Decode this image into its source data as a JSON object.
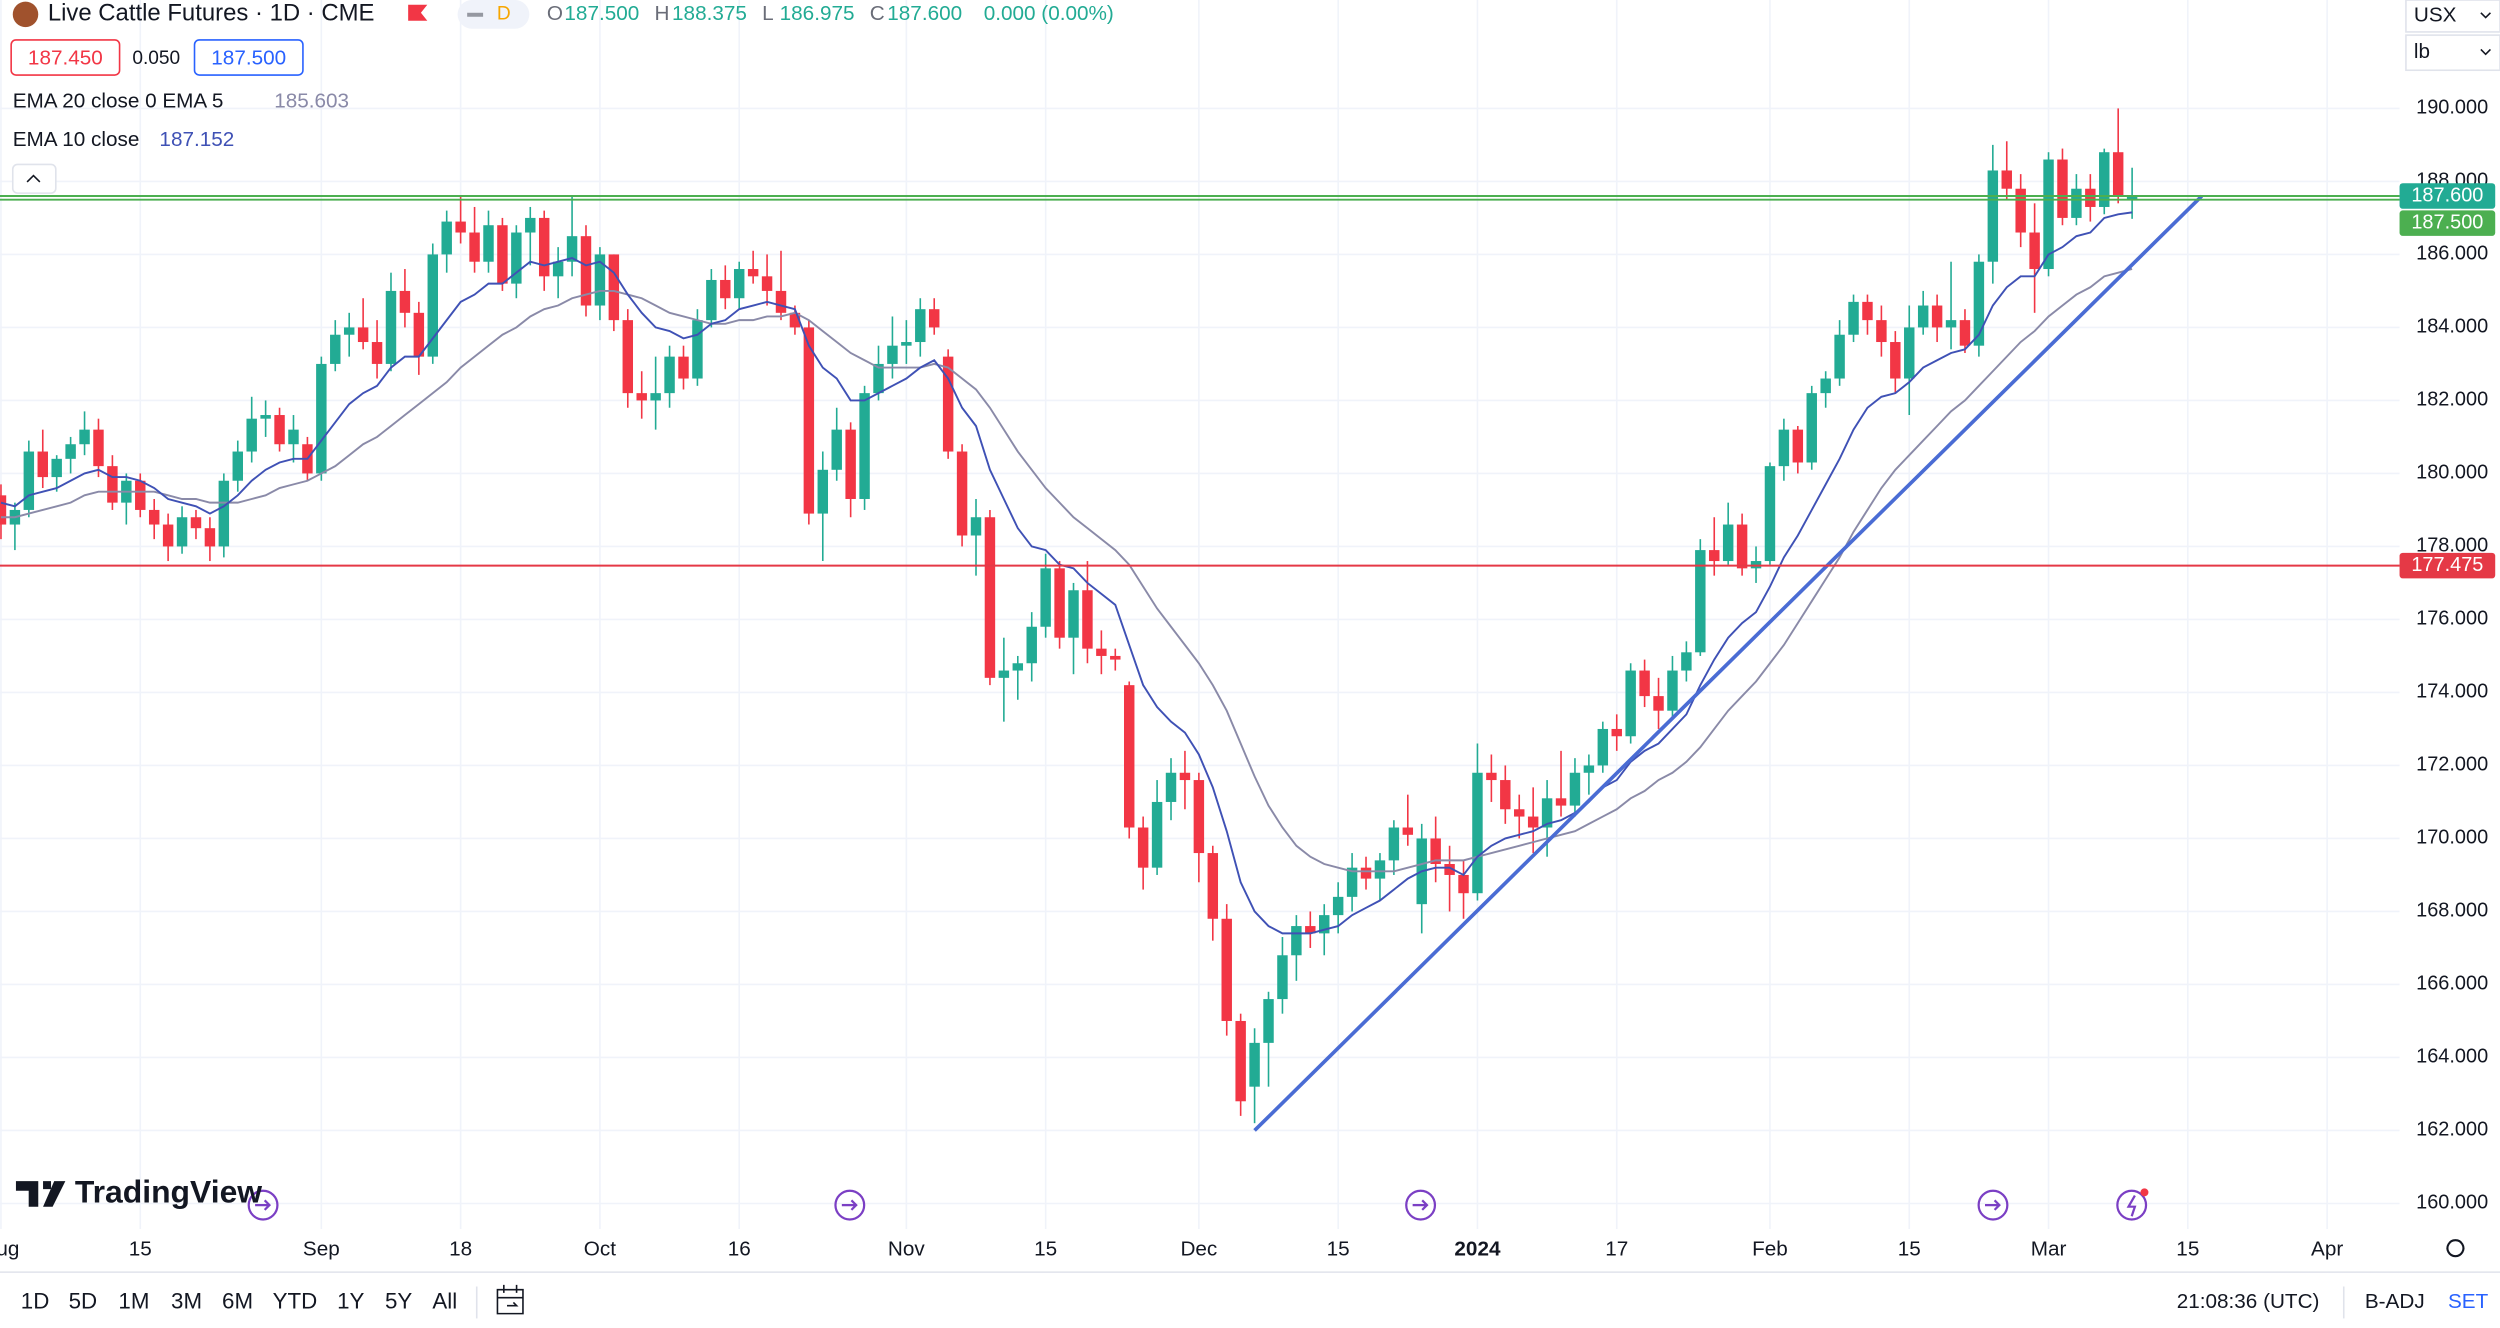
{
  "header": {
    "title": "Live Cattle Futures · 1D · CME",
    "interval_badge": "D",
    "ohlc": [
      {
        "key": "O",
        "value": "187.500"
      },
      {
        "key": "H",
        "value": "188.375"
      },
      {
        "key": "L",
        "value": "186.975"
      },
      {
        "key": "C",
        "value": "187.600"
      }
    ],
    "change": "0.000 (0.00%)"
  },
  "quote": {
    "bid": "187.450",
    "spread": "0.050",
    "ask": "187.500"
  },
  "units": {
    "currency": "USX",
    "unit": "lb"
  },
  "logo": "TradingView",
  "toolbar": {
    "ranges": [
      "1D",
      "5D",
      "1M",
      "3M",
      "6M",
      "YTD",
      "1Y",
      "5Y",
      "All"
    ],
    "time": "21:08:36 (UTC)",
    "adjust": "B-ADJ",
    "settlement": "SET"
  },
  "chart_data": {
    "type": "candlestick",
    "up_color": "#22ab94",
    "down_color": "#f23645",
    "grid": true,
    "categories": [
      "Aug",
      null,
      null,
      null,
      null,
      null,
      null,
      null,
      null,
      null,
      "15",
      null,
      null,
      null,
      null,
      null,
      null,
      null,
      null,
      null,
      null,
      null,
      null,
      "Sep",
      null,
      null,
      null,
      null,
      null,
      null,
      null,
      null,
      null,
      "18",
      null,
      null,
      null,
      null,
      null,
      null,
      null,
      null,
      null,
      "Oct",
      null,
      null,
      null,
      null,
      null,
      null,
      null,
      null,
      null,
      "16",
      null,
      null,
      null,
      null,
      null,
      null,
      null,
      null,
      null,
      null,
      null,
      "Nov",
      null,
      null,
      null,
      null,
      null,
      null,
      null,
      null,
      null,
      "15",
      null,
      null,
      null,
      null,
      null,
      null,
      null,
      null,
      null,
      null,
      "Dec",
      null,
      null,
      null,
      null,
      null,
      null,
      null,
      null,
      null,
      "15",
      null,
      null,
      null,
      null,
      null,
      null,
      null,
      null,
      null,
      "2024",
      null,
      null,
      null,
      null,
      null,
      null,
      null,
      null,
      null,
      "17",
      null,
      null,
      null,
      null,
      null,
      null,
      null,
      null,
      null,
      null,
      "Feb",
      null,
      null,
      null,
      null,
      null,
      null,
      null,
      null,
      null,
      "15",
      null,
      null,
      null,
      null,
      null,
      null,
      null,
      null,
      null,
      "Mar",
      null,
      null,
      null,
      null,
      null,
      null,
      null,
      null,
      null,
      "15",
      null,
      null,
      null,
      null,
      null,
      null,
      null,
      null,
      null,
      "Apr"
    ],
    "open": [
      179.4,
      178.6,
      179.0,
      180.6,
      179.9,
      180.4,
      180.8,
      181.2,
      180.2,
      179.2,
      179.8,
      179.0,
      178.6,
      178.0,
      178.8,
      178.5,
      178.0,
      179.8,
      180.6,
      181.5,
      181.6,
      180.8,
      180.8,
      180.0,
      183.0,
      183.8,
      184.0,
      183.6,
      183.0,
      185.0,
      184.4,
      183.2,
      186.0,
      186.9,
      186.6,
      185.8,
      186.8,
      185.2,
      186.6,
      187.0,
      185.4,
      185.8,
      186.5,
      184.6,
      186.0,
      184.2,
      182.2,
      182.0,
      182.2,
      183.2,
      182.6,
      184.2,
      185.3,
      184.8,
      185.6,
      185.4,
      185.0,
      184.4,
      184.0,
      178.9,
      180.1,
      181.2,
      179.3,
      182.2,
      183.0,
      183.5,
      183.6,
      184.5,
      183.2,
      180.6,
      178.3,
      178.8,
      174.4,
      174.6,
      174.8,
      175.8,
      177.4,
      175.5,
      176.8,
      175.2,
      175.0,
      174.2,
      170.3,
      169.2,
      171.0,
      171.8,
      171.6,
      169.6,
      167.8,
      165.0,
      163.2,
      164.4,
      165.6,
      166.8,
      167.6,
      167.4,
      167.9,
      168.4,
      169.2,
      168.9,
      169.4,
      170.3,
      168.2,
      170.0,
      169.3,
      169.0,
      168.5,
      171.8,
      171.6,
      170.8,
      170.6,
      170.3,
      171.1,
      170.9,
      171.8,
      172.0,
      173.0,
      172.8,
      174.6,
      173.9,
      173.5,
      174.6,
      175.1,
      177.9,
      177.6,
      178.6,
      177.4,
      177.6,
      180.2,
      181.2,
      180.3,
      182.2,
      182.6,
      183.8,
      184.7,
      184.2,
      183.6,
      182.6,
      184.0,
      184.6,
      184.0,
      184.2,
      183.5,
      185.8,
      188.3,
      187.8,
      186.6,
      185.6,
      188.6,
      187.0,
      187.8,
      187.3,
      188.8,
      187.5,
      null,
      null,
      null,
      null,
      null,
      null,
      null,
      null,
      null,
      null,
      null,
      null,
      null,
      null
    ],
    "high": [
      179.7,
      179.2,
      180.9,
      181.2,
      180.5,
      181.0,
      181.7,
      181.5,
      180.5,
      180.0,
      180.0,
      179.3,
      178.9,
      179.1,
      179.0,
      178.8,
      180.0,
      180.9,
      182.1,
      182.0,
      181.8,
      181.6,
      181.0,
      183.2,
      184.2,
      184.4,
      184.8,
      184.2,
      185.5,
      185.6,
      184.7,
      186.3,
      187.2,
      187.6,
      187.3,
      187.2,
      187.0,
      186.8,
      187.3,
      187.2,
      186.2,
      187.6,
      186.8,
      186.2,
      186.0,
      184.5,
      182.8,
      183.2,
      183.5,
      183.5,
      184.5,
      185.6,
      185.7,
      185.8,
      186.1,
      186.0,
      186.1,
      184.6,
      184.2,
      180.6,
      181.8,
      181.4,
      182.4,
      183.5,
      184.3,
      184.2,
      184.8,
      184.8,
      183.4,
      180.8,
      179.3,
      179.0,
      175.5,
      175.0,
      176.2,
      177.8,
      177.6,
      177.0,
      177.6,
      175.7,
      175.2,
      174.3,
      170.6,
      171.6,
      172.2,
      172.4,
      171.8,
      169.8,
      168.2,
      165.2,
      164.8,
      165.8,
      167.3,
      167.9,
      168.0,
      168.2,
      168.8,
      169.6,
      169.5,
      169.6,
      170.5,
      171.2,
      170.4,
      170.6,
      169.8,
      169.4,
      172.6,
      172.3,
      172.0,
      171.2,
      171.4,
      171.6,
      172.4,
      172.2,
      172.3,
      173.2,
      173.4,
      174.8,
      174.9,
      174.4,
      175.0,
      175.4,
      178.2,
      178.8,
      179.2,
      178.9,
      178.0,
      180.3,
      181.5,
      181.3,
      182.4,
      182.8,
      184.2,
      184.9,
      184.9,
      184.6,
      183.9,
      184.6,
      185.0,
      184.9,
      185.8,
      184.5,
      186.0,
      189.0,
      189.1,
      188.2,
      187.4,
      188.8,
      188.9,
      188.2,
      188.2,
      188.9,
      190.0,
      188.375,
      null,
      null,
      null,
      null,
      null,
      null,
      null,
      null,
      null,
      null,
      null,
      null,
      null,
      null
    ],
    "low": [
      178.2,
      177.9,
      178.8,
      179.6,
      179.5,
      180.0,
      180.5,
      179.9,
      179.0,
      178.6,
      178.8,
      178.2,
      177.6,
      177.8,
      178.2,
      177.6,
      177.7,
      179.5,
      180.3,
      181.0,
      180.6,
      180.3,
      179.8,
      179.8,
      182.8,
      183.2,
      183.4,
      182.6,
      182.8,
      184.0,
      182.7,
      183.0,
      185.5,
      186.3,
      185.5,
      185.5,
      185.0,
      184.8,
      185.7,
      185.0,
      184.8,
      185.4,
      184.3,
      184.2,
      183.9,
      181.8,
      181.5,
      181.2,
      181.8,
      182.3,
      182.4,
      184.0,
      184.5,
      184.5,
      185.2,
      184.6,
      184.2,
      183.8,
      178.6,
      177.6,
      179.8,
      178.8,
      179.0,
      182.0,
      182.6,
      183.0,
      183.2,
      183.8,
      180.4,
      178.0,
      177.2,
      174.2,
      173.2,
      173.8,
      174.3,
      175.5,
      175.2,
      174.5,
      174.8,
      174.5,
      174.6,
      170.0,
      168.6,
      169.0,
      170.5,
      170.8,
      168.8,
      167.2,
      164.6,
      162.4,
      162.2,
      163.2,
      165.2,
      166.1,
      167.0,
      166.8,
      167.4,
      168.0,
      168.6,
      168.3,
      169.0,
      169.8,
      167.4,
      168.8,
      168.0,
      167.8,
      168.3,
      171.0,
      170.4,
      170.0,
      169.6,
      169.5,
      170.6,
      170.6,
      171.2,
      171.8,
      172.4,
      172.6,
      173.6,
      173.0,
      173.3,
      174.3,
      175.0,
      177.2,
      177.5,
      177.2,
      177.0,
      177.5,
      179.8,
      180.0,
      180.1,
      181.8,
      182.4,
      183.6,
      183.8,
      183.2,
      182.2,
      181.6,
      183.8,
      183.6,
      183.4,
      183.3,
      183.2,
      185.2,
      187.5,
      186.2,
      184.4,
      185.4,
      186.8,
      186.8,
      186.9,
      187.1,
      187.4,
      186.975,
      null,
      null,
      null,
      null,
      null,
      null,
      null,
      null,
      null,
      null,
      null,
      null,
      null,
      null
    ],
    "close": [
      178.6,
      179.0,
      180.6,
      179.9,
      180.4,
      180.8,
      181.2,
      180.2,
      179.2,
      179.8,
      179.0,
      178.6,
      178.0,
      178.8,
      178.5,
      178.0,
      179.8,
      180.6,
      181.5,
      181.6,
      180.8,
      181.2,
      180.0,
      183.0,
      183.8,
      184.0,
      183.6,
      183.0,
      185.0,
      184.4,
      183.2,
      186.0,
      186.9,
      186.6,
      185.8,
      186.8,
      185.2,
      186.6,
      187.0,
      185.4,
      185.8,
      186.5,
      184.6,
      186.0,
      184.2,
      182.2,
      182.0,
      182.2,
      183.2,
      182.6,
      184.2,
      185.3,
      184.8,
      185.6,
      185.4,
      185.0,
      184.4,
      184.0,
      178.9,
      180.1,
      181.2,
      179.3,
      182.2,
      183.0,
      183.5,
      183.6,
      184.5,
      184.0,
      180.6,
      178.3,
      178.8,
      174.4,
      174.6,
      174.8,
      175.8,
      177.4,
      175.5,
      176.8,
      175.2,
      175.0,
      174.9,
      170.3,
      169.2,
      171.0,
      171.8,
      171.6,
      169.6,
      167.8,
      165.0,
      162.8,
      164.4,
      165.6,
      166.8,
      167.6,
      167.4,
      167.9,
      168.4,
      169.2,
      168.9,
      169.4,
      170.3,
      170.1,
      170.0,
      169.3,
      169.0,
      168.5,
      171.8,
      171.6,
      170.8,
      170.6,
      170.3,
      171.1,
      170.9,
      171.8,
      172.0,
      173.0,
      172.8,
      174.6,
      173.9,
      173.5,
      174.6,
      175.1,
      177.9,
      177.6,
      178.6,
      177.4,
      177.6,
      180.2,
      181.2,
      180.3,
      182.2,
      182.6,
      183.8,
      184.7,
      184.2,
      183.6,
      182.6,
      184.0,
      184.6,
      184.0,
      184.2,
      183.5,
      185.8,
      188.3,
      187.8,
      186.6,
      185.6,
      188.6,
      187.0,
      187.8,
      187.3,
      188.8,
      187.6,
      187.6,
      null,
      null,
      null,
      null,
      null,
      null,
      null,
      null,
      null,
      null,
      null,
      null,
      null,
      null
    ],
    "series": [
      {
        "name": "EMA 20 close 0 EMA 5",
        "last_label": "185.603",
        "color": "#8a8aa8",
        "values": [
          178.8,
          178.8,
          178.9,
          179.0,
          179.1,
          179.2,
          179.4,
          179.5,
          179.5,
          179.5,
          179.5,
          179.5,
          179.4,
          179.3,
          179.3,
          179.2,
          179.2,
          179.2,
          179.3,
          179.4,
          179.6,
          179.7,
          179.8,
          180.0,
          180.2,
          180.5,
          180.8,
          181.0,
          181.3,
          181.6,
          181.9,
          182.2,
          182.5,
          182.9,
          183.2,
          183.5,
          183.8,
          184.0,
          184.3,
          184.5,
          184.6,
          184.8,
          184.9,
          185.0,
          185.0,
          184.9,
          184.8,
          184.6,
          184.4,
          184.3,
          184.2,
          184.1,
          184.1,
          184.2,
          184.2,
          184.3,
          184.3,
          184.4,
          184.2,
          183.9,
          183.6,
          183.3,
          183.1,
          182.9,
          182.9,
          182.9,
          182.9,
          183.0,
          182.9,
          182.6,
          182.3,
          181.8,
          181.2,
          180.6,
          180.1,
          179.6,
          179.2,
          178.8,
          178.5,
          178.2,
          177.9,
          177.5,
          176.9,
          176.3,
          175.8,
          175.3,
          174.8,
          174.2,
          173.5,
          172.6,
          171.7,
          170.9,
          170.3,
          169.8,
          169.5,
          169.3,
          169.2,
          169.1,
          169.1,
          169.1,
          169.1,
          169.2,
          169.3,
          169.4,
          169.4,
          169.4,
          169.5,
          169.6,
          169.7,
          169.8,
          169.9,
          170.0,
          170.1,
          170.2,
          170.4,
          170.6,
          170.8,
          171.1,
          171.3,
          171.6,
          171.8,
          172.1,
          172.5,
          173.0,
          173.5,
          173.9,
          174.3,
          174.8,
          175.3,
          175.9,
          176.5,
          177.1,
          177.7,
          178.4,
          179.0,
          179.6,
          180.1,
          180.5,
          180.9,
          181.3,
          181.7,
          182.0,
          182.4,
          182.8,
          183.2,
          183.6,
          183.9,
          184.3,
          184.6,
          184.9,
          185.1,
          185.4,
          185.5,
          185.603,
          null,
          null,
          null,
          null,
          null,
          null,
          null,
          null,
          null,
          null,
          null,
          null,
          null,
          null
        ]
      },
      {
        "name": "EMA 10 close",
        "last_label": "187.152",
        "color": "#3f51b5",
        "values": [
          179.2,
          179.1,
          179.4,
          179.5,
          179.6,
          179.8,
          180.0,
          180.1,
          179.9,
          179.9,
          179.8,
          179.6,
          179.3,
          179.2,
          179.1,
          178.9,
          179.1,
          179.4,
          179.8,
          180.1,
          180.3,
          180.4,
          180.4,
          180.9,
          181.4,
          181.9,
          182.2,
          182.4,
          182.9,
          183.2,
          183.2,
          183.7,
          184.2,
          184.7,
          184.9,
          185.2,
          185.2,
          185.5,
          185.8,
          185.7,
          185.8,
          185.9,
          185.7,
          185.8,
          185.5,
          184.9,
          184.4,
          184.0,
          183.9,
          183.7,
          183.8,
          184.1,
          184.2,
          184.5,
          184.6,
          184.7,
          184.6,
          184.5,
          183.5,
          182.9,
          182.6,
          182.0,
          182.0,
          182.2,
          182.4,
          182.6,
          182.9,
          183.1,
          182.6,
          181.8,
          181.3,
          180.1,
          179.3,
          178.5,
          178.0,
          177.9,
          177.5,
          177.4,
          177.0,
          176.7,
          176.4,
          175.3,
          174.2,
          173.6,
          173.2,
          172.9,
          172.3,
          171.4,
          170.2,
          168.8,
          168.0,
          167.6,
          167.4,
          167.4,
          167.4,
          167.5,
          167.6,
          167.9,
          168.1,
          168.3,
          168.6,
          168.9,
          169.1,
          169.2,
          169.2,
          169.0,
          169.5,
          169.8,
          170.0,
          170.1,
          170.2,
          170.4,
          170.5,
          170.7,
          171.0,
          171.4,
          171.6,
          172.1,
          172.4,
          172.6,
          173.0,
          173.4,
          174.2,
          174.9,
          175.5,
          175.9,
          176.2,
          176.9,
          177.7,
          178.3,
          179.0,
          179.7,
          180.4,
          181.2,
          181.8,
          182.1,
          182.2,
          182.5,
          182.9,
          183.1,
          183.3,
          183.4,
          183.8,
          184.6,
          185.1,
          185.4,
          185.4,
          186.0,
          186.2,
          186.5,
          186.6,
          187.0,
          187.1,
          187.152,
          null,
          null,
          null,
          null,
          null,
          null,
          null,
          null,
          null,
          null,
          null,
          null,
          null,
          null
        ]
      }
    ],
    "ylim": [
      159.3,
      192.97
    ],
    "yticks": [
      {
        "value": 160,
        "label": "160.000"
      },
      {
        "value": 162,
        "label": "162.000"
      },
      {
        "value": 164,
        "label": "164.000"
      },
      {
        "value": 166,
        "label": "166.000"
      },
      {
        "value": 168,
        "label": "168.000"
      },
      {
        "value": 170,
        "label": "170.000"
      },
      {
        "value": 172,
        "label": "172.000"
      },
      {
        "value": 174,
        "label": "174.000"
      },
      {
        "value": 176,
        "label": "176.000"
      },
      {
        "value": 178,
        "label": "178.000"
      },
      {
        "value": 180,
        "label": "180.000"
      },
      {
        "value": 182,
        "label": "182.000"
      },
      {
        "value": 184,
        "label": "184.000"
      },
      {
        "value": 186,
        "label": "186.000"
      },
      {
        "value": 188,
        "label": "188.000"
      },
      {
        "value": 190,
        "label": "190.000"
      }
    ],
    "xlim": [
      -0.07,
      172.2
    ],
    "price_lines": [
      {
        "value": 187.6,
        "label": "187.600",
        "color": "#4caf50",
        "label_color": "#22ab94"
      },
      {
        "value": 187.5,
        "label": "187.500",
        "color": "#4caf50",
        "label_color": "#4caf50"
      },
      {
        "value": 177.475,
        "label": "177.475",
        "color": "#e53946",
        "label_color": "#e53946"
      }
    ],
    "drawings": [
      {
        "type": "trend_line",
        "color": "#4a6cd4",
        "x": [
          90,
          158
        ],
        "y": [
          162.0,
          187.6
        ]
      }
    ]
  }
}
